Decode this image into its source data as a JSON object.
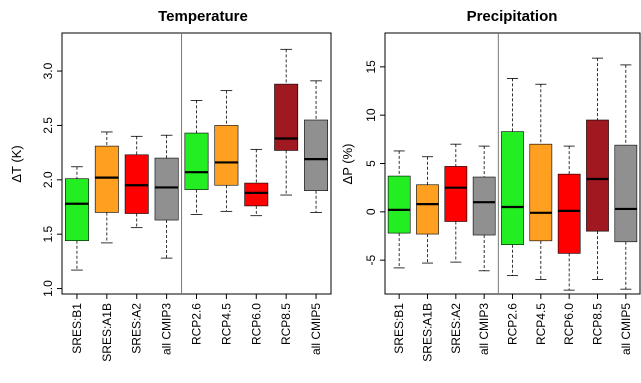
{
  "chart_data": [
    {
      "type": "boxplot",
      "title": "Temperature",
      "ylabel": "ΔT (K)",
      "ylim": [
        0.95,
        3.35
      ],
      "yticks": [
        1.0,
        1.5,
        2.0,
        2.5,
        3.0
      ],
      "ytick_labels": [
        "1.0",
        "1.5",
        "2.0",
        "2.5",
        "3.0"
      ],
      "categories": [
        "SRES:B1",
        "SRES:A1B",
        "SRES:A2",
        "all CMIP3",
        "RCP2.6",
        "RCP4.5",
        "RCP6.0",
        "RCP8.5",
        "all CMIP5"
      ],
      "colors": [
        "#22ee22",
        "#ffa020",
        "#ff0000",
        "#909090",
        "#22ee22",
        "#ffa020",
        "#ff0000",
        "#a01820",
        "#909090"
      ],
      "separator_after_index": 3,
      "boxes": [
        {
          "whisker_low": 1.17,
          "q1": 1.44,
          "median": 1.78,
          "q3": 2.01,
          "whisker_high": 2.12
        },
        {
          "whisker_low": 1.42,
          "q1": 1.7,
          "median": 2.02,
          "q3": 2.31,
          "whisker_high": 2.44
        },
        {
          "whisker_low": 1.56,
          "q1": 1.69,
          "median": 1.95,
          "q3": 2.23,
          "whisker_high": 2.4
        },
        {
          "whisker_low": 1.28,
          "q1": 1.63,
          "median": 1.93,
          "q3": 2.2,
          "whisker_high": 2.41
        },
        {
          "whisker_low": 1.68,
          "q1": 1.91,
          "median": 2.07,
          "q3": 2.43,
          "whisker_high": 2.73
        },
        {
          "whisker_low": 1.71,
          "q1": 1.95,
          "median": 2.16,
          "q3": 2.5,
          "whisker_high": 2.82
        },
        {
          "whisker_low": 1.67,
          "q1": 1.76,
          "median": 1.88,
          "q3": 1.97,
          "whisker_high": 2.28
        },
        {
          "whisker_low": 1.86,
          "q1": 2.27,
          "median": 2.38,
          "q3": 2.88,
          "whisker_high": 3.2
        },
        {
          "whisker_low": 1.7,
          "q1": 1.9,
          "median": 2.19,
          "q3": 2.55,
          "whisker_high": 2.91
        }
      ]
    },
    {
      "type": "boxplot",
      "title": "Precipitation",
      "ylabel": "ΔP (%)",
      "ylim": [
        -8.5,
        18.5
      ],
      "yticks": [
        -5,
        0,
        5,
        10,
        15
      ],
      "ytick_labels": [
        "-5",
        "0",
        "5",
        "10",
        "15"
      ],
      "categories": [
        "SRES:B1",
        "SRES:A1B",
        "SRES:A2",
        "all CMIP3",
        "RCP2.6",
        "RCP4.5",
        "RCP6.0",
        "RCP8.5",
        "all CMIP5"
      ],
      "colors": [
        "#22ee22",
        "#ffa020",
        "#ff0000",
        "#909090",
        "#22ee22",
        "#ffa020",
        "#ff0000",
        "#a01820",
        "#909090"
      ],
      "separator_after_index": 3,
      "boxes": [
        {
          "whisker_low": -5.8,
          "q1": -2.2,
          "median": 0.2,
          "q3": 3.7,
          "whisker_high": 6.3
        },
        {
          "whisker_low": -5.3,
          "q1": -2.3,
          "median": 0.8,
          "q3": 2.8,
          "whisker_high": 5.7
        },
        {
          "whisker_low": -5.2,
          "q1": -1.0,
          "median": 2.5,
          "q3": 4.7,
          "whisker_high": 7.0
        },
        {
          "whisker_low": -6.1,
          "q1": -2.4,
          "median": 1.0,
          "q3": 3.6,
          "whisker_high": 6.8
        },
        {
          "whisker_low": -6.6,
          "q1": -3.4,
          "median": 0.5,
          "q3": 8.3,
          "whisker_high": 13.8
        },
        {
          "whisker_low": -7.0,
          "q1": -3.0,
          "median": -0.1,
          "q3": 7.0,
          "whisker_high": 13.2
        },
        {
          "whisker_low": -8.1,
          "q1": -4.3,
          "median": 0.1,
          "q3": 3.9,
          "whisker_high": 6.8
        },
        {
          "whisker_low": -7.0,
          "q1": -2.0,
          "median": 3.4,
          "q3": 9.5,
          "whisker_high": 15.9
        },
        {
          "whisker_low": -8.0,
          "q1": -3.1,
          "median": 0.3,
          "q3": 6.9,
          "whisker_high": 15.2
        }
      ]
    }
  ]
}
